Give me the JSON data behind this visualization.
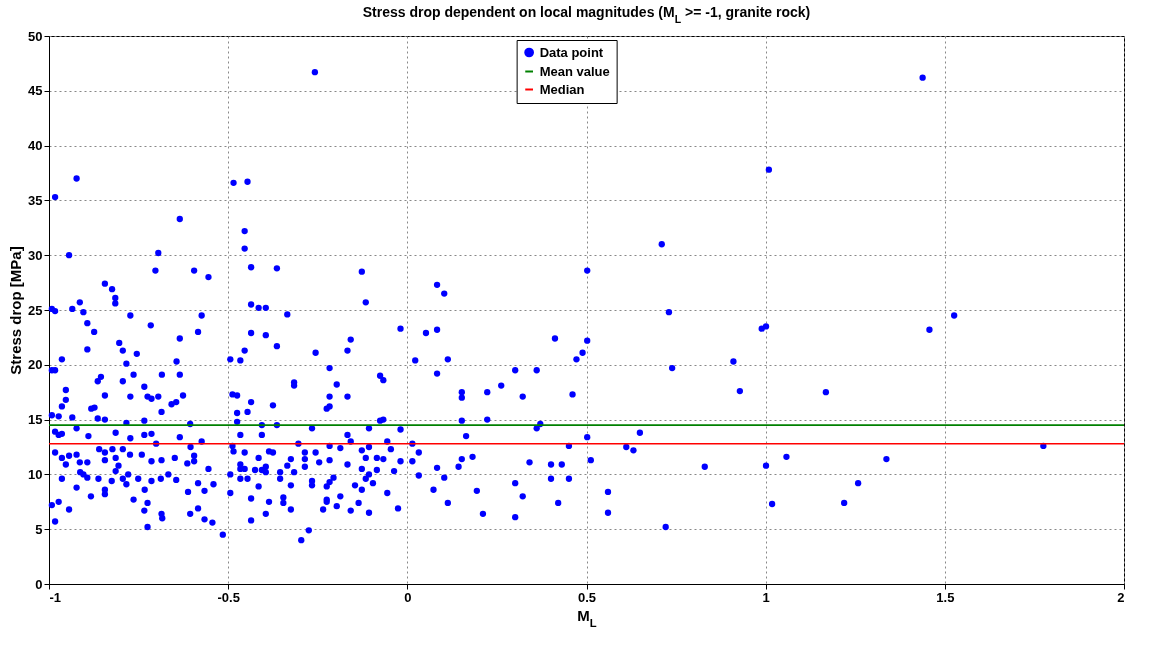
{
  "chart_data": {
    "type": "scatter",
    "title": "Stress drop dependent on local magnitudes (M$_{L}$ >= -1, granite rock)",
    "xlabel": "M$_{L}$",
    "ylabel": "Stress drop [MPa]",
    "xlim": [
      -1,
      2
    ],
    "xticks": [
      -1,
      -0.5,
      0,
      0.5,
      1,
      1.5,
      2
    ],
    "ylim": [
      0,
      50
    ],
    "yticks": [
      0,
      5,
      10,
      15,
      20,
      25,
      30,
      35,
      40,
      45,
      50
    ],
    "grid": true,
    "legend": "top",
    "marker": "circle",
    "series": [
      {
        "name": "Data point",
        "color": "#0000ff",
        "x": [
          1.438,
          1.009,
          0.71,
          0.73,
          1.526,
          1.457,
          0.989,
          1.001,
          0.739,
          0.91,
          0.928,
          1.168,
          0.649,
          0.611,
          0.631,
          1.775,
          0.83,
          1.001,
          1.058,
          1.337,
          1.258,
          1.018,
          1.219,
          0.721,
          0.083,
          0.103,
          0.502,
          -0.019,
          0.052,
          0.083,
          0.412,
          0.502,
          0.489,
          0.472,
          0.022,
          0.113,
          0.083,
          0.301,
          0.361,
          0.262,
          0.152,
          0.152,
          0.223,
          0.322,
          0.461,
          0.152,
          0.223,
          0.371,
          0.361,
          -0.019,
          0.164,
          0.502,
          0.014,
          0.451,
          0.032,
          -0.019,
          0.014,
          0.152,
          0.182,
          0.143,
          0.083,
          0.341,
          0.401,
          0.431,
          0.512,
          0.032,
          0.103,
          0.401,
          0.451,
          0.301,
          0.073,
          0.194,
          0.56,
          0.322,
          0.113,
          0.421,
          0.211,
          0.301,
          0.56,
          -0.258,
          -0.485,
          -0.446,
          -0.454,
          -0.454,
          -0.436,
          -0.364,
          -0.127,
          -0.436,
          -0.415,
          -0.395,
          -0.116,
          -0.335,
          -0.436,
          -0.395,
          -0.158,
          -0.364,
          -0.454,
          -0.167,
          -0.256,
          -0.466,
          -0.217,
          -0.316,
          -0.316,
          -0.197,
          -0.076,
          -0.067,
          -0.475,
          -0.217,
          -0.167,
          -0.375,
          -0.225,
          -0.217,
          -0.436,
          -0.475,
          -0.446,
          -0.076,
          -0.067,
          -0.406,
          -0.364,
          -0.266,
          -0.107,
          -0.475,
          -0.466,
          -0.406,
          -0.167,
          -0.158,
          -0.056,
          -0.304,
          -0.217,
          -0.107,
          -0.187,
          -0.046,
          -0.485,
          -0.454,
          -0.386,
          -0.375,
          -0.286,
          -0.256,
          -0.127,
          -0.415,
          -0.325,
          -0.286,
          -0.217,
          -0.116,
          -0.085,
          -0.067,
          -0.246,
          -0.466,
          -0.335,
          -0.286,
          -0.167,
          -0.466,
          -0.454,
          -0.425,
          -0.406,
          -0.395,
          -0.395,
          -0.355,
          -0.316,
          -0.127,
          -0.085,
          -0.037,
          -0.466,
          -0.446,
          -0.355,
          -0.206,
          -0.116,
          -0.107,
          -0.096,
          -0.266,
          -0.217,
          -0.146,
          -0.415,
          -0.325,
          -0.266,
          -0.225,
          -0.127,
          -0.056,
          -0.436,
          -0.346,
          -0.346,
          -0.386,
          -0.225,
          -0.225,
          -0.187,
          -0.197,
          -0.136,
          -0.325,
          -0.235,
          -0.158,
          -0.107,
          -0.026,
          -0.395,
          -0.436,
          -0.275,
          -0.296,
          -0.983,
          -0.923,
          -0.635,
          -0.944,
          -0.695,
          -0.703,
          -0.595,
          -0.555,
          -0.844,
          -0.824,
          -0.815,
          -0.815,
          -0.992,
          -0.983,
          -0.935,
          -0.914,
          -0.904,
          -0.574,
          -0.773,
          -0.716,
          -0.893,
          -0.584,
          -0.874,
          -0.635,
          -0.893,
          -0.804,
          -0.794,
          -0.755,
          -0.964,
          -0.992,
          -0.983,
          -0.784,
          -0.644,
          -0.635,
          -0.764,
          -0.794,
          -0.864,
          -0.855,
          -0.685,
          -0.953,
          -0.844,
          -0.734,
          -0.773,
          -0.725,
          -0.714,
          -0.695,
          -0.658,
          -0.626,
          -0.645,
          -0.953,
          -0.964,
          -0.882,
          -0.873,
          -0.992,
          -0.973,
          -0.935,
          -0.864,
          -0.844,
          -0.784,
          -0.686,
          -0.734,
          -0.606,
          -0.983,
          -0.973,
          -0.964,
          -0.923,
          -0.89,
          -0.814,
          -0.773,
          -0.734,
          -0.714,
          -0.635,
          -0.574,
          -0.86,
          -0.844,
          -0.794,
          -0.823,
          -0.701,
          -0.605,
          -0.983,
          -0.964,
          -0.944,
          -0.923,
          -0.914,
          -0.953,
          -0.893,
          -0.844,
          -0.814,
          -0.806,
          -0.774,
          -0.741,
          -0.714,
          -0.686,
          -0.649,
          -0.614,
          -0.595,
          -0.595,
          -0.555,
          -0.964,
          -0.923,
          -0.913,
          -0.904,
          -0.893,
          -0.862,
          -0.844,
          -0.825,
          -0.814,
          -0.794,
          -0.784,
          -0.779,
          -0.751,
          -0.733,
          -0.714,
          -0.688,
          -0.667,
          -0.645,
          -0.612,
          -0.584,
          -0.566,
          -0.541,
          -0.992,
          -0.973,
          -0.944,
          -0.883,
          -0.844,
          -0.764,
          -0.734,
          -0.725,
          -0.686,
          -0.684,
          -0.606,
          -0.584,
          -0.566,
          -0.544,
          -0.983,
          -0.725,
          -0.515,
          -0.494,
          -0.494,
          -0.494,
          -0.488,
          -0.488
        ],
        "values": [
          46.2,
          37.8,
          31.0,
          24.8,
          24.5,
          23.2,
          23.3,
          23.5,
          19.7,
          20.3,
          17.6,
          17.5,
          13.8,
          12.5,
          12.2,
          12.6,
          10.7,
          10.8,
          11.6,
          11.4,
          9.2,
          7.3,
          7.4,
          5.2,
          27.3,
          26.5,
          28.6,
          23.3,
          22.9,
          23.2,
          22.4,
          22.2,
          21.1,
          20.5,
          20.4,
          20.5,
          19.2,
          19.5,
          19.5,
          18.1,
          17.5,
          17.0,
          17.5,
          17.1,
          17.3,
          14.9,
          15.0,
          14.6,
          14.2,
          14.1,
          13.5,
          13.4,
          12.8,
          12.6,
          12.0,
          11.2,
          11.2,
          11.4,
          11.6,
          10.7,
          10.6,
          11.1,
          10.9,
          10.9,
          11.3,
          9.9,
          9.7,
          9.6,
          9.6,
          9.2,
          8.6,
          8.5,
          8.4,
          8.0,
          7.4,
          7.4,
          6.4,
          6.1,
          6.5,
          46.7,
          36.6,
          36.7,
          32.2,
          30.6,
          28.9,
          28.8,
          28.5,
          25.5,
          25.2,
          25.2,
          25.7,
          24.6,
          22.9,
          22.7,
          22.3,
          21.7,
          21.3,
          21.3,
          21.1,
          20.4,
          19.7,
          18.4,
          18.1,
          18.2,
          19.0,
          18.6,
          17.2,
          17.1,
          17.1,
          16.3,
          16.0,
          16.2,
          16.6,
          15.6,
          15.7,
          14.9,
          15.0,
          14.5,
          14.5,
          14.2,
          14.2,
          14.8,
          13.6,
          13.6,
          13.6,
          13.0,
          13.0,
          12.8,
          12.6,
          12.5,
          12.4,
          12.3,
          12.1,
          12.0,
          12.1,
          12.0,
          12.0,
          12.0,
          12.2,
          11.5,
          11.4,
          11.4,
          11.3,
          11.5,
          11.5,
          11.4,
          11.1,
          10.9,
          10.8,
          10.7,
          10.9,
          10.5,
          10.5,
          10.4,
          10.4,
          10.7,
          10.2,
          10.2,
          10.2,
          10.5,
          10.4,
          10.3,
          9.6,
          9.6,
          9.6,
          9.7,
          9.6,
          10.0,
          9.2,
          9.4,
          9.3,
          9.0,
          8.9,
          9.0,
          9.0,
          8.9,
          8.6,
          8.3,
          7.8,
          7.9,
          7.4,
          7.5,
          7.7,
          7.5,
          8.0,
          7.1,
          7.4,
          6.8,
          6.8,
          6.7,
          6.5,
          6.9,
          6.4,
          5.8,
          4.9,
          4.0,
          35.3,
          37.0,
          33.3,
          30.0,
          30.2,
          28.6,
          28.6,
          28.0,
          27.4,
          26.9,
          26.1,
          25.6,
          25.1,
          24.9,
          25.1,
          25.7,
          24.8,
          24.5,
          24.5,
          23.6,
          23.8,
          23.0,
          23.0,
          22.4,
          21.4,
          22.0,
          21.3,
          21.0,
          20.5,
          19.5,
          19.5,
          20.1,
          20.3,
          19.1,
          19.1,
          18.5,
          18.5,
          18.9,
          19.1,
          17.7,
          17.2,
          18.0,
          17.1,
          17.1,
          16.9,
          17.1,
          16.4,
          17.2,
          16.6,
          16.8,
          16.2,
          16.0,
          16.1,
          15.4,
          15.3,
          15.2,
          15.1,
          15.0,
          14.7,
          15.7,
          14.9,
          14.6,
          13.9,
          13.6,
          13.7,
          14.2,
          13.5,
          13.8,
          13.3,
          13.6,
          13.7,
          13.4,
          13.0,
          12.3,
          12.0,
          12.3,
          12.3,
          12.8,
          12.5,
          12.0,
          11.5,
          11.7,
          11.8,
          11.1,
          10.9,
          11.1,
          11.3,
          11.5,
          10.8,
          11.8,
          11.8,
          11.2,
          11.3,
          11.5,
          11.0,
          11.7,
          11.2,
          10.5,
          9.6,
          8.8,
          10.2,
          10.0,
          9.7,
          9.6,
          8.6,
          9.4,
          10.3,
          9.6,
          9.1,
          10.0,
          9.6,
          8.6,
          9.4,
          9.6,
          10.0,
          9.5,
          8.4,
          9.2,
          8.5,
          9.1,
          7.2,
          7.5,
          6.8,
          8.0,
          8.2,
          7.7,
          6.7,
          7.4,
          6.4,
          6.0,
          6.4,
          6.9,
          5.9,
          5.6,
          5.7,
          5.2,
          4.5,
          20.5,
          10.0,
          8.3,
          17.3,
          12.6
        ]
      }
    ],
    "ref_lines": [
      {
        "axis": "y",
        "value": 14.5,
        "label": "Mean value",
        "color": "#008000",
        "line_style": "solid"
      },
      {
        "axis": "y",
        "value": 12.8,
        "label": "Median",
        "color": "#ff0000",
        "line_style": "solid"
      }
    ]
  }
}
